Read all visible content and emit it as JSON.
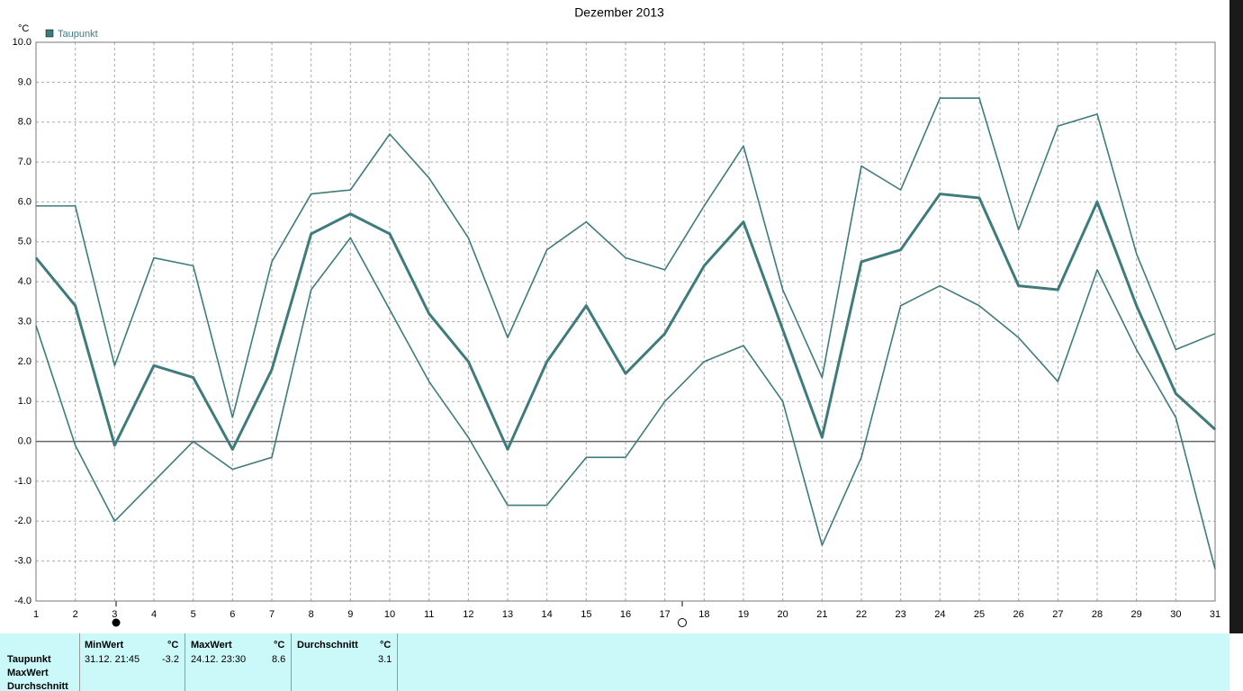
{
  "chart_data": {
    "type": "line",
    "title": "Dezember 2013",
    "ylabel": "°C",
    "x": [
      1,
      2,
      3,
      4,
      5,
      6,
      7,
      8,
      9,
      10,
      11,
      12,
      13,
      14,
      15,
      16,
      17,
      18,
      19,
      20,
      21,
      22,
      23,
      24,
      25,
      26,
      27,
      28,
      29,
      30,
      31
    ],
    "xlim": [
      1,
      31
    ],
    "xticks": [
      1,
      2,
      3,
      4,
      5,
      6,
      7,
      8,
      9,
      10,
      11,
      12,
      13,
      14,
      15,
      16,
      17,
      18,
      19,
      20,
      21,
      22,
      23,
      24,
      25,
      26,
      27,
      28,
      29,
      30,
      31
    ],
    "ylim": [
      -4,
      10
    ],
    "yticks": [
      {
        "value": 10,
        "label": "10.0"
      },
      {
        "value": 9,
        "label": "9.0"
      },
      {
        "value": 8,
        "label": "8.0"
      },
      {
        "value": 7,
        "label": "7.0"
      },
      {
        "value": 6,
        "label": "6.0"
      },
      {
        "value": 5,
        "label": "5.0"
      },
      {
        "value": 4,
        "label": "4.0"
      },
      {
        "value": 3,
        "label": "3.0"
      },
      {
        "value": 2,
        "label": "2.0"
      },
      {
        "value": 1,
        "label": "1.0"
      },
      {
        "value": 0,
        "label": "0.0"
      },
      {
        "value": -1,
        "label": "-1.0"
      },
      {
        "value": -2,
        "label": "-2.0"
      },
      {
        "value": -3,
        "label": "-3.0"
      },
      {
        "value": -4,
        "label": "-4.0"
      }
    ],
    "grid": true,
    "series": [
      {
        "name": "Taupunkt",
        "color": "#3f7b7b",
        "width": 3,
        "values": [
          4.6,
          3.4,
          -0.1,
          1.9,
          1.6,
          -0.2,
          1.8,
          5.2,
          5.7,
          5.2,
          3.2,
          2.0,
          -0.2,
          2.0,
          3.4,
          1.7,
          2.7,
          4.4,
          5.5,
          2.8,
          0.1,
          4.5,
          4.8,
          6.2,
          6.1,
          3.9,
          3.8,
          6.0,
          3.4,
          1.2,
          0.3
        ]
      },
      {
        "color": "#3f7b7b",
        "width": 1.6,
        "values": [
          5.9,
          5.9,
          1.9,
          4.6,
          4.4,
          0.6,
          4.5,
          6.2,
          6.3,
          7.7,
          6.6,
          5.1,
          2.6,
          4.8,
          5.5,
          4.6,
          4.3,
          5.9,
          7.4,
          3.8,
          1.6,
          6.9,
          6.3,
          8.6,
          8.6,
          5.3,
          7.9,
          8.2,
          4.7,
          2.3,
          2.7
        ]
      },
      {
        "color": "#3f7b7b",
        "width": 1.6,
        "values": [
          2.9,
          -0.1,
          -2.0,
          -1.0,
          0.0,
          -0.7,
          -0.4,
          3.8,
          5.1,
          3.3,
          1.5,
          0.1,
          -1.6,
          -1.6,
          -0.4,
          -0.4,
          1.0,
          2.0,
          2.4,
          1.0,
          -2.6,
          -0.4,
          3.4,
          3.9,
          3.4,
          2.6,
          1.5,
          4.3,
          2.3,
          0.6,
          -3.2
        ]
      }
    ]
  },
  "stats": {
    "row_labels": [
      "Taupunkt",
      "MaxWert",
      "Durchschnitt"
    ],
    "min": {
      "header": "MinWert",
      "unit": "°C",
      "time": "31.12.  21:45",
      "value": "-3.2"
    },
    "max": {
      "header": "MaxWert",
      "unit": "°C",
      "time": "24.12.  23:30",
      "value": "8.6"
    },
    "avg": {
      "header": "Durchschnitt",
      "unit": "°C",
      "value": "3.1"
    }
  }
}
